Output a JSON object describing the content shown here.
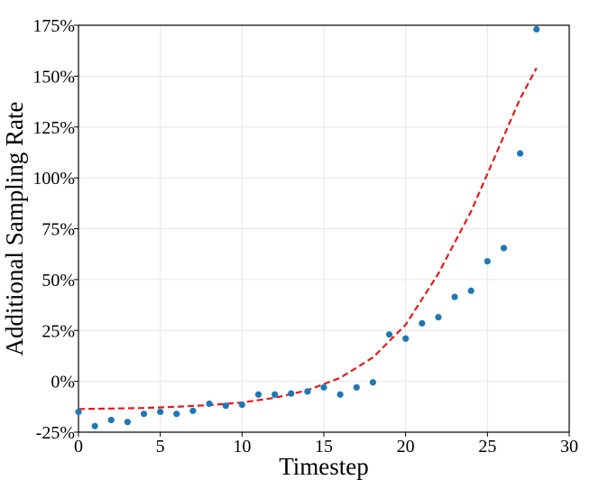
{
  "chart_data": {
    "type": "scatter",
    "xlabel": "Timestep",
    "ylabel": "Additional Sampling Rate",
    "xlim": [
      0,
      30
    ],
    "ylim": [
      -25,
      175
    ],
    "x_ticks": [
      0,
      5,
      10,
      15,
      20,
      25,
      30
    ],
    "y_ticks": [
      -25,
      0,
      25,
      50,
      75,
      100,
      125,
      150,
      175
    ],
    "x_tick_labels": [
      "0",
      "5",
      "10",
      "15",
      "20",
      "25",
      "30"
    ],
    "y_tick_labels": [
      "-25%",
      "0%",
      "25%",
      "50%",
      "75%",
      "100%",
      "125%",
      "150%",
      "175%"
    ],
    "grid": true,
    "series": [
      {
        "kind": "scatter",
        "color": "#1f77b4",
        "x": [
          0,
          1,
          2,
          3,
          4,
          5,
          6,
          7,
          8,
          9,
          10,
          11,
          12,
          13,
          14,
          15,
          16,
          17,
          18,
          19,
          20,
          21,
          22,
          23,
          24,
          25,
          26,
          27,
          28
        ],
        "y": [
          -15,
          -22,
          -19,
          -20,
          -16,
          -15,
          -16,
          -14.5,
          -11,
          -12,
          -11.5,
          -6.5,
          -6.5,
          -6,
          -5,
          -3,
          -6.5,
          -3,
          -0.5,
          23,
          21,
          28.5,
          31.5,
          41.5,
          44.5,
          59,
          65.5,
          112,
          173
        ]
      },
      {
        "kind": "line",
        "style": "dashed",
        "color": "#e41a1c",
        "x": [
          0,
          2,
          4,
          6,
          8,
          10,
          12,
          14,
          16,
          18,
          20,
          22,
          24,
          26,
          27,
          28
        ],
        "y": [
          -13.6,
          -13.4,
          -13.1,
          -12.5,
          -11.7,
          -10.4,
          -8.1,
          -4.4,
          1.7,
          11.7,
          27.8,
          52.9,
          83.5,
          120.5,
          139,
          154
        ]
      }
    ]
  }
}
